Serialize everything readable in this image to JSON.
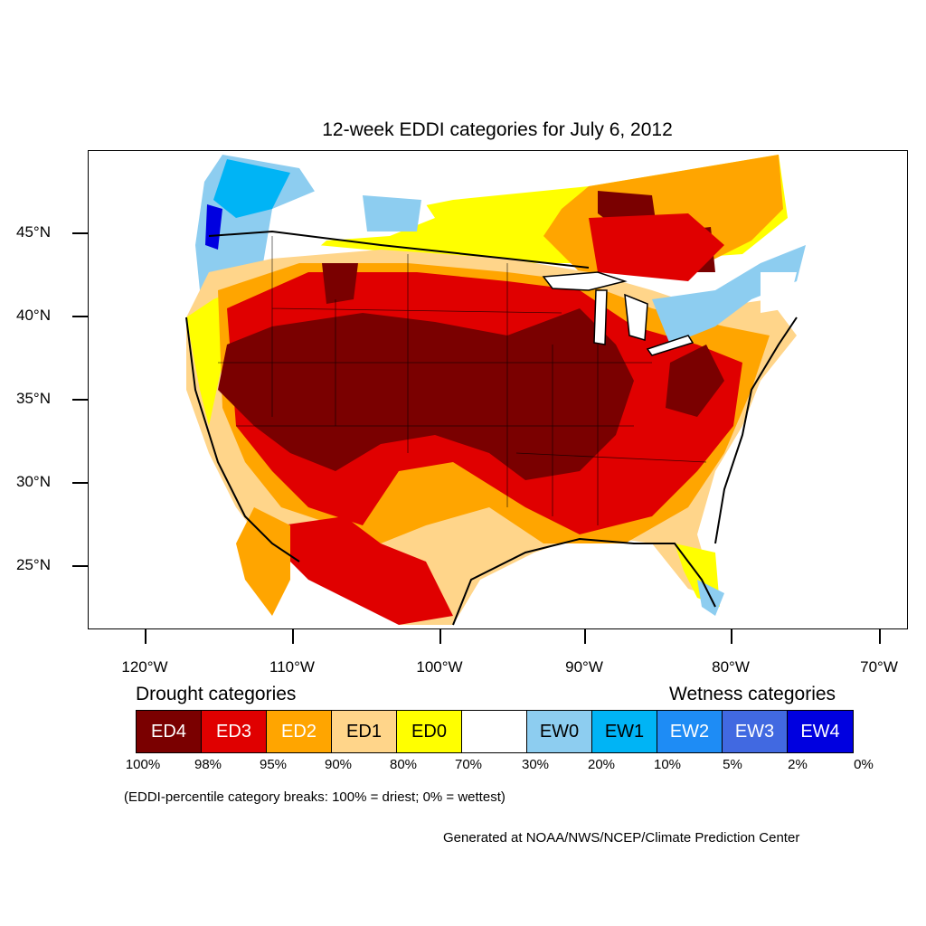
{
  "title": "12-week EDDI categories for July 6, 2012",
  "map": {
    "lat_labels": [
      "45°N",
      "40°N",
      "35°N",
      "30°N",
      "25°N"
    ],
    "lon_labels": [
      "120°W",
      "110°W",
      "100°W",
      "90°W",
      "80°W",
      "70°W"
    ],
    "colors": {
      "ED4": "#7a0000",
      "ED3": "#e00000",
      "ED2": "#ffa500",
      "ED1": "#ffd58a",
      "ED0": "#ffff00",
      "neutral": "#ffffff",
      "EW0": "#8dcdf0",
      "EW1": "#00b4f5",
      "EW2": "#1e8cf5",
      "EW3": "#4169e1",
      "EW4": "#0000e0"
    }
  },
  "legend": {
    "drought_heading": "Drought categories",
    "wetness_heading": "Wetness categories",
    "categories": [
      {
        "label": "ED4",
        "color": "#7a0000",
        "text_color": "#ffffff"
      },
      {
        "label": "ED3",
        "color": "#e00000",
        "text_color": "#ffffff"
      },
      {
        "label": "ED2",
        "color": "#ffa500",
        "text_color": "#ffffff"
      },
      {
        "label": "ED1",
        "color": "#ffd58a",
        "text_color": "#000000"
      },
      {
        "label": "ED0",
        "color": "#ffff00",
        "text_color": "#000000"
      },
      {
        "label": "",
        "color": "#ffffff",
        "text_color": "#000000"
      },
      {
        "label": "EW0",
        "color": "#8dcdf0",
        "text_color": "#000000"
      },
      {
        "label": "EW1",
        "color": "#00b4f5",
        "text_color": "#000000"
      },
      {
        "label": "EW2",
        "color": "#1e8cf5",
        "text_color": "#ffffff"
      },
      {
        "label": "EW3",
        "color": "#4169e1",
        "text_color": "#ffffff"
      },
      {
        "label": "EW4",
        "color": "#0000e0",
        "text_color": "#ffffff"
      }
    ],
    "percent_breaks": [
      "100%",
      "98%",
      "95%",
      "90%",
      "80%",
      "70%",
      "30%",
      "20%",
      "10%",
      "5%",
      "2%",
      "0%"
    ]
  },
  "note": "(EDDI-percentile category breaks: 100% = driest; 0% = wettest)",
  "credit": "Generated at NOAA/NWS/NCEP/Climate Prediction Center"
}
